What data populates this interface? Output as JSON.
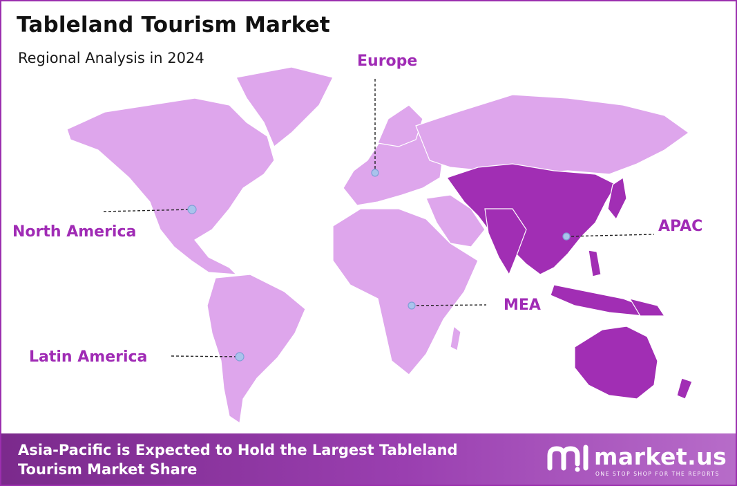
{
  "header": {
    "title": "Tableland Tourism Market",
    "subtitle": "Regional Analysis in 2024"
  },
  "regions": [
    {
      "name": "Europe",
      "highlighted": false
    },
    {
      "name": "North America",
      "highlighted": false
    },
    {
      "name": "APAC",
      "highlighted": true
    },
    {
      "name": "MEA",
      "highlighted": false
    },
    {
      "name": "Latin America",
      "highlighted": false
    }
  ],
  "colors": {
    "base_region": "#dea6ec",
    "highlight_region": "#a12eb4",
    "label": "#a02bb5",
    "marker": "#a9c3ec",
    "border": "#9b2fae"
  },
  "footer": {
    "text": "Asia-Pacific is Expected to Hold the Largest Tableland Tourism Market Share"
  },
  "brand": {
    "name": "market.us",
    "tagline": "ONE STOP SHOP FOR THE REPORTS",
    "icon": "market-us-logo-icon"
  }
}
